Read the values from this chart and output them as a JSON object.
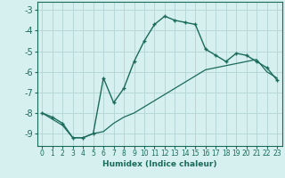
{
  "xlabel": "Humidex (Indice chaleur)",
  "background_color": "#d6efef",
  "grid_color": "#b8d8d8",
  "line_color": "#1a6b5a",
  "xlim": [
    -0.5,
    23.5
  ],
  "ylim": [
    -9.6,
    -2.6
  ],
  "xticks": [
    0,
    1,
    2,
    3,
    4,
    5,
    6,
    7,
    8,
    9,
    10,
    11,
    12,
    13,
    14,
    15,
    16,
    17,
    18,
    19,
    20,
    21,
    22,
    23
  ],
  "yticks": [
    -9,
    -8,
    -7,
    -6,
    -5,
    -4,
    -3
  ],
  "curve1_x": [
    0,
    1,
    2,
    3,
    4,
    5,
    6,
    7,
    8,
    9,
    10,
    11,
    12,
    13,
    14,
    15,
    16,
    17,
    18,
    19,
    20,
    21,
    22,
    23
  ],
  "curve1_y": [
    -8.0,
    -8.2,
    -8.5,
    -9.2,
    -9.2,
    -9.0,
    -6.3,
    -7.5,
    -6.8,
    -5.5,
    -4.5,
    -3.7,
    -3.3,
    -3.5,
    -3.6,
    -3.7,
    -4.9,
    -5.2,
    -5.5,
    -5.1,
    -5.2,
    -5.5,
    -5.8,
    -6.4
  ],
  "curve2_x": [
    0,
    1,
    2,
    3,
    4,
    5,
    6,
    7,
    8,
    9,
    10,
    11,
    12,
    13,
    14,
    15,
    16,
    17,
    18,
    19,
    20,
    21,
    22,
    23
  ],
  "curve2_y": [
    -8.0,
    -8.3,
    -8.6,
    -9.2,
    -9.2,
    -9.0,
    -8.9,
    -8.5,
    -8.2,
    -8.0,
    -7.7,
    -7.4,
    -7.1,
    -6.8,
    -6.5,
    -6.2,
    -5.9,
    -5.8,
    -5.7,
    -5.6,
    -5.5,
    -5.4,
    -6.0,
    -6.3
  ]
}
